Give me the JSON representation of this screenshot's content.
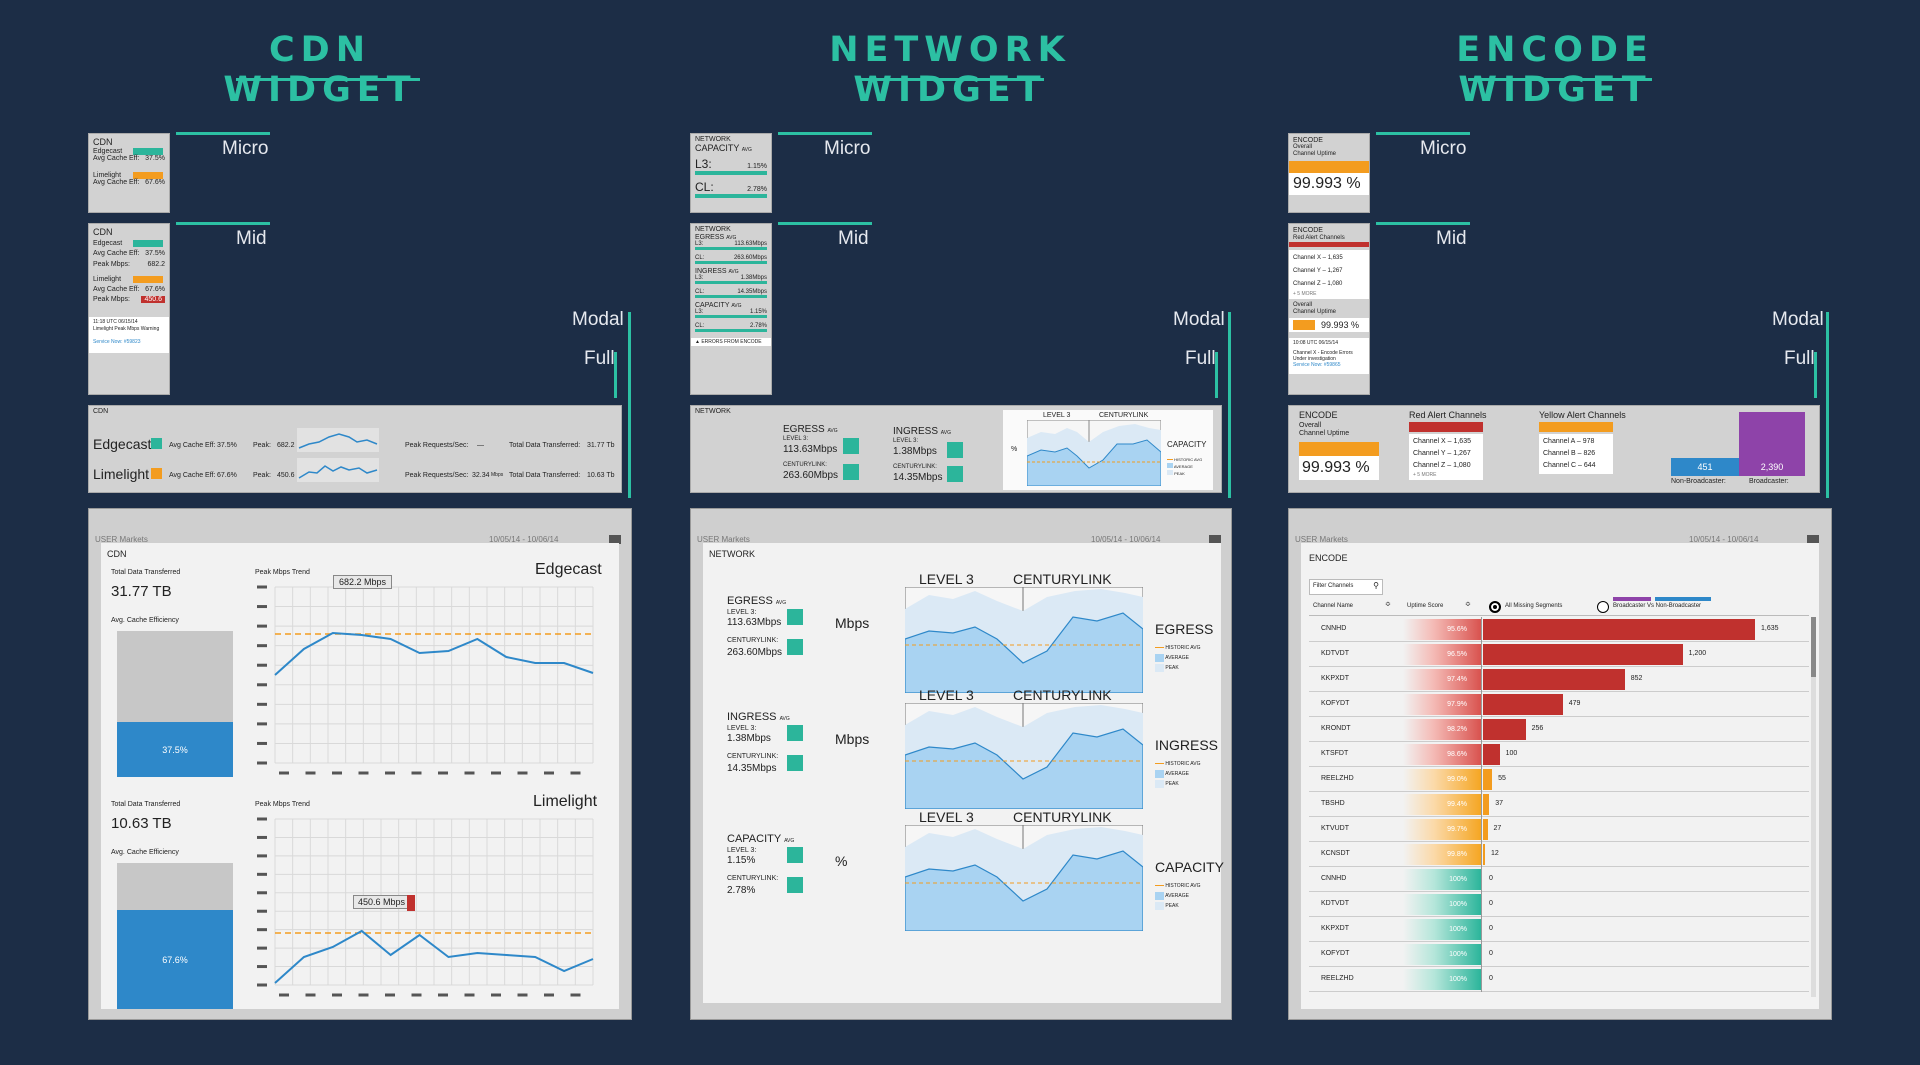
{
  "titles": {
    "cdn": "CDN WIDGET",
    "network": "NETWORK WIDGET",
    "encode": "ENCODE WIDGET"
  },
  "levels": {
    "micro": "Micro",
    "mid": "Mid",
    "modal": "Modal",
    "full": "Full"
  },
  "cdn": {
    "micro": {
      "title": "CDN",
      "edgecast": "Edgecast",
      "eff_label": "Avg Cache Eff:",
      "edgecast_eff": "37.5%",
      "limelight": "Limelight",
      "limelight_eff": "67.6%"
    },
    "mid": {
      "title": "CDN",
      "edgecast": "Edgecast",
      "eff_label": "Avg Cache Eff:",
      "edgecast_eff": "37.5%",
      "peak_label": "Peak Mbps:",
      "edgecast_peak": "682.2",
      "limelight": "Limelight",
      "limelight_eff": "67.6%",
      "limelight_peak": "450.6",
      "alert_line1": "11:18 UTC 06/15/14",
      "alert_line2": "Limelight Peak Mbps Warning",
      "alert_link": "Service Now: #59823"
    },
    "modal": {
      "title": "CDN",
      "edgecast": "Edgecast",
      "limelight": "Limelight",
      "eff_label": "Avg Cache Eff:",
      "edgecast_eff": "37.5%",
      "limelight_eff": "67.6%",
      "peak_label": "Peak:",
      "edgecast_peak": "682.2",
      "limelight_peak": "450.6",
      "unit": "Mbps",
      "req_label": "Peak Requests/Sec:",
      "edgecast_req": "—",
      "limelight_req": "32.34",
      "total_label": "Total Data Transferred:",
      "edgecast_total": "31.77 Tb",
      "limelight_total": "10.63 Tb"
    },
    "full": {
      "header_left": "USER Markets",
      "header_right": "10/05/14 - 10/06/14",
      "title": "CDN",
      "edgecast": {
        "name": "Edgecast",
        "total_label": "Total Data Transferred",
        "total": "31.77 TB",
        "eff_label": "Avg. Cache Efficiency",
        "eff_pct": "37.5%",
        "eff_value": 37.5,
        "trend_label": "Peak Mbps Trend",
        "callout": "682.2 Mbps"
      },
      "limelight": {
        "name": "Limelight",
        "total_label": "Total Data Transferred",
        "total": "10.63 TB",
        "eff_label": "Avg. Cache Efficiency",
        "eff_pct": "67.6%",
        "eff_value": 67.6,
        "trend_label": "Peak Mbps Trend",
        "callout": "450.6 Mbps"
      }
    }
  },
  "network": {
    "micro": {
      "title": "NETWORK",
      "capacity": "CAPACITY",
      "avg": "AVG",
      "l3": "L3:",
      "l3_val": "1.15%",
      "cl": "CL:",
      "cl_val": "2.78%"
    },
    "mid": {
      "title": "NETWORK",
      "egress": "EGRESS",
      "ingress": "INGRESS",
      "capacity": "CAPACITY",
      "avg": "AVG",
      "l3": "L3:",
      "cl": "CL:",
      "egress_l3": "113.63Mbps",
      "egress_cl": "263.60Mbps",
      "ingress_l3": "1.38Mbps",
      "ingress_cl": "14.35Mbps",
      "capacity_l3": "1.15%",
      "capacity_cl": "2.78%",
      "footer": "ERRORS FROM ENCODE"
    },
    "modal": {
      "title": "NETWORK",
      "egress": "EGRESS",
      "ingress": "INGRESS",
      "avg": "AVG",
      "level3": "LEVEL 3:",
      "centurylink": "CENTURYLINK:",
      "egress_l3": "113.63Mbps",
      "egress_cl": "263.60Mbps",
      "ingress_l3": "1.38Mbps",
      "ingress_cl": "14.35Mbps",
      "chart_l3": "LEVEL 3",
      "chart_cl": "CENTURYLINK",
      "chart_unit": "%",
      "chart_name": "CAPACITY",
      "hist": "HISTORIC AVG",
      "average": "AVERAGE",
      "peak": "PEAK"
    },
    "full": {
      "header_left": "USER Markets",
      "header_right": "10/05/14 - 10/06/14",
      "title": "NETWORK",
      "level3_short": "LEVEL 3:",
      "centurylink_short": "CENTURYLINK:",
      "avg": "AVG",
      "col_l3": "LEVEL 3",
      "col_cl": "CENTURYLINK",
      "hist": "HISTORIC AVG",
      "average": "AVERAGE",
      "peak": "PEAK",
      "rows": [
        {
          "name": "EGRESS",
          "l3": "113.63Mbps",
          "cl": "263.60Mbps",
          "unit": "Mbps",
          "chart": "EGRESS"
        },
        {
          "name": "INGRESS",
          "l3": "1.38Mbps",
          "cl": "14.35Mbps",
          "unit": "Mbps",
          "chart": "INGRESS"
        },
        {
          "name": "CAPACITY",
          "l3": "1.15%",
          "cl": "2.78%",
          "unit": "%",
          "chart": "CAPACITY"
        }
      ]
    }
  },
  "encode": {
    "micro": {
      "title": "ENCODE",
      "sub1": "Overall",
      "sub2": "Channel Uptime",
      "value": "99.993 %"
    },
    "mid": {
      "title": "ENCODE",
      "red_label": "Red Alert Channels",
      "channels": [
        "Channel X – 1,635",
        "Channel Y – 1,267",
        "Channel Z – 1,080"
      ],
      "more": "+ 5 MORE",
      "uptime_label1": "Overall",
      "uptime_label2": "Channel Uptime",
      "uptime": "99.993 %",
      "alert_line1": "10:08 UTC 06/15/14",
      "alert_line2": "Channel X - Encode Errors",
      "alert_line3": "Under investigation",
      "alert_link": "Service Now: #59865"
    },
    "modal": {
      "title": "ENCODE",
      "sub1": "Overall",
      "sub2": "Channel Uptime",
      "value": "99.993 %",
      "red_label": "Red Alert Channels",
      "red": [
        "Channel X – 1,635",
        "Channel Y – 1,267",
        "Channel Z – 1,080"
      ],
      "more": "+ 5 MORE",
      "yellow_label": "Yellow Alert Channels",
      "yellow": [
        "Channel A – 978",
        "Channel B – 826",
        "Channel C – 644"
      ],
      "nonb_value": "451",
      "nonb_label": "Non-Broadcaster:",
      "b_value": "2,390",
      "b_label": "Broadcaster:"
    },
    "full": {
      "header_left": "USER Markets",
      "header_right": "10/05/14 - 10/06/14",
      "title": "ENCODE",
      "filter": "Filter Channels",
      "col_name": "Channel Name",
      "col_uptime": "Uptime Score",
      "radio1": "All Missing Segments",
      "radio2": "Broadcaster Vs Non-Broadcaster",
      "rows": [
        {
          "name": "CNNHD",
          "uptime": "95.6%",
          "count": "1,635",
          "value": 1635,
          "tier": "red"
        },
        {
          "name": "KDTVDT",
          "uptime": "96.5%",
          "count": "1,200",
          "value": 1200,
          "tier": "red"
        },
        {
          "name": "KKPXDT",
          "uptime": "97.4%",
          "count": "852",
          "value": 852,
          "tier": "red"
        },
        {
          "name": "KOFYDT",
          "uptime": "97.9%",
          "count": "479",
          "value": 479,
          "tier": "red"
        },
        {
          "name": "KRONDT",
          "uptime": "98.2%",
          "count": "256",
          "value": 256,
          "tier": "red"
        },
        {
          "name": "KTSFDT",
          "uptime": "98.6%",
          "count": "100",
          "value": 100,
          "tier": "red"
        },
        {
          "name": "REELZHD",
          "uptime": "99.0%",
          "count": "55",
          "value": 55,
          "tier": "orange"
        },
        {
          "name": "TBSHD",
          "uptime": "99.4%",
          "count": "37",
          "value": 37,
          "tier": "orange"
        },
        {
          "name": "KTVUDT",
          "uptime": "99.7%",
          "count": "27",
          "value": 27,
          "tier": "orange"
        },
        {
          "name": "KCNSDT",
          "uptime": "99.8%",
          "count": "12",
          "value": 12,
          "tier": "orange"
        },
        {
          "name": "CNNHD",
          "uptime": "100%",
          "count": "0",
          "value": 0,
          "tier": "teal"
        },
        {
          "name": "KDTVDT",
          "uptime": "100%",
          "count": "0",
          "value": 0,
          "tier": "teal"
        },
        {
          "name": "KKPXDT",
          "uptime": "100%",
          "count": "0",
          "value": 0,
          "tier": "teal"
        },
        {
          "name": "KOFYDT",
          "uptime": "100%",
          "count": "0",
          "value": 0,
          "tier": "teal"
        },
        {
          "name": "REELZHD",
          "uptime": "100%",
          "count": "0",
          "value": 0,
          "tier": "teal"
        }
      ]
    }
  },
  "colors": {
    "teal": "#2cb59b",
    "orange": "#f39c1f",
    "red": "#c0312e",
    "blue": "#2e88c9",
    "purple": "#8e43a9",
    "background": "#1c2d46"
  }
}
